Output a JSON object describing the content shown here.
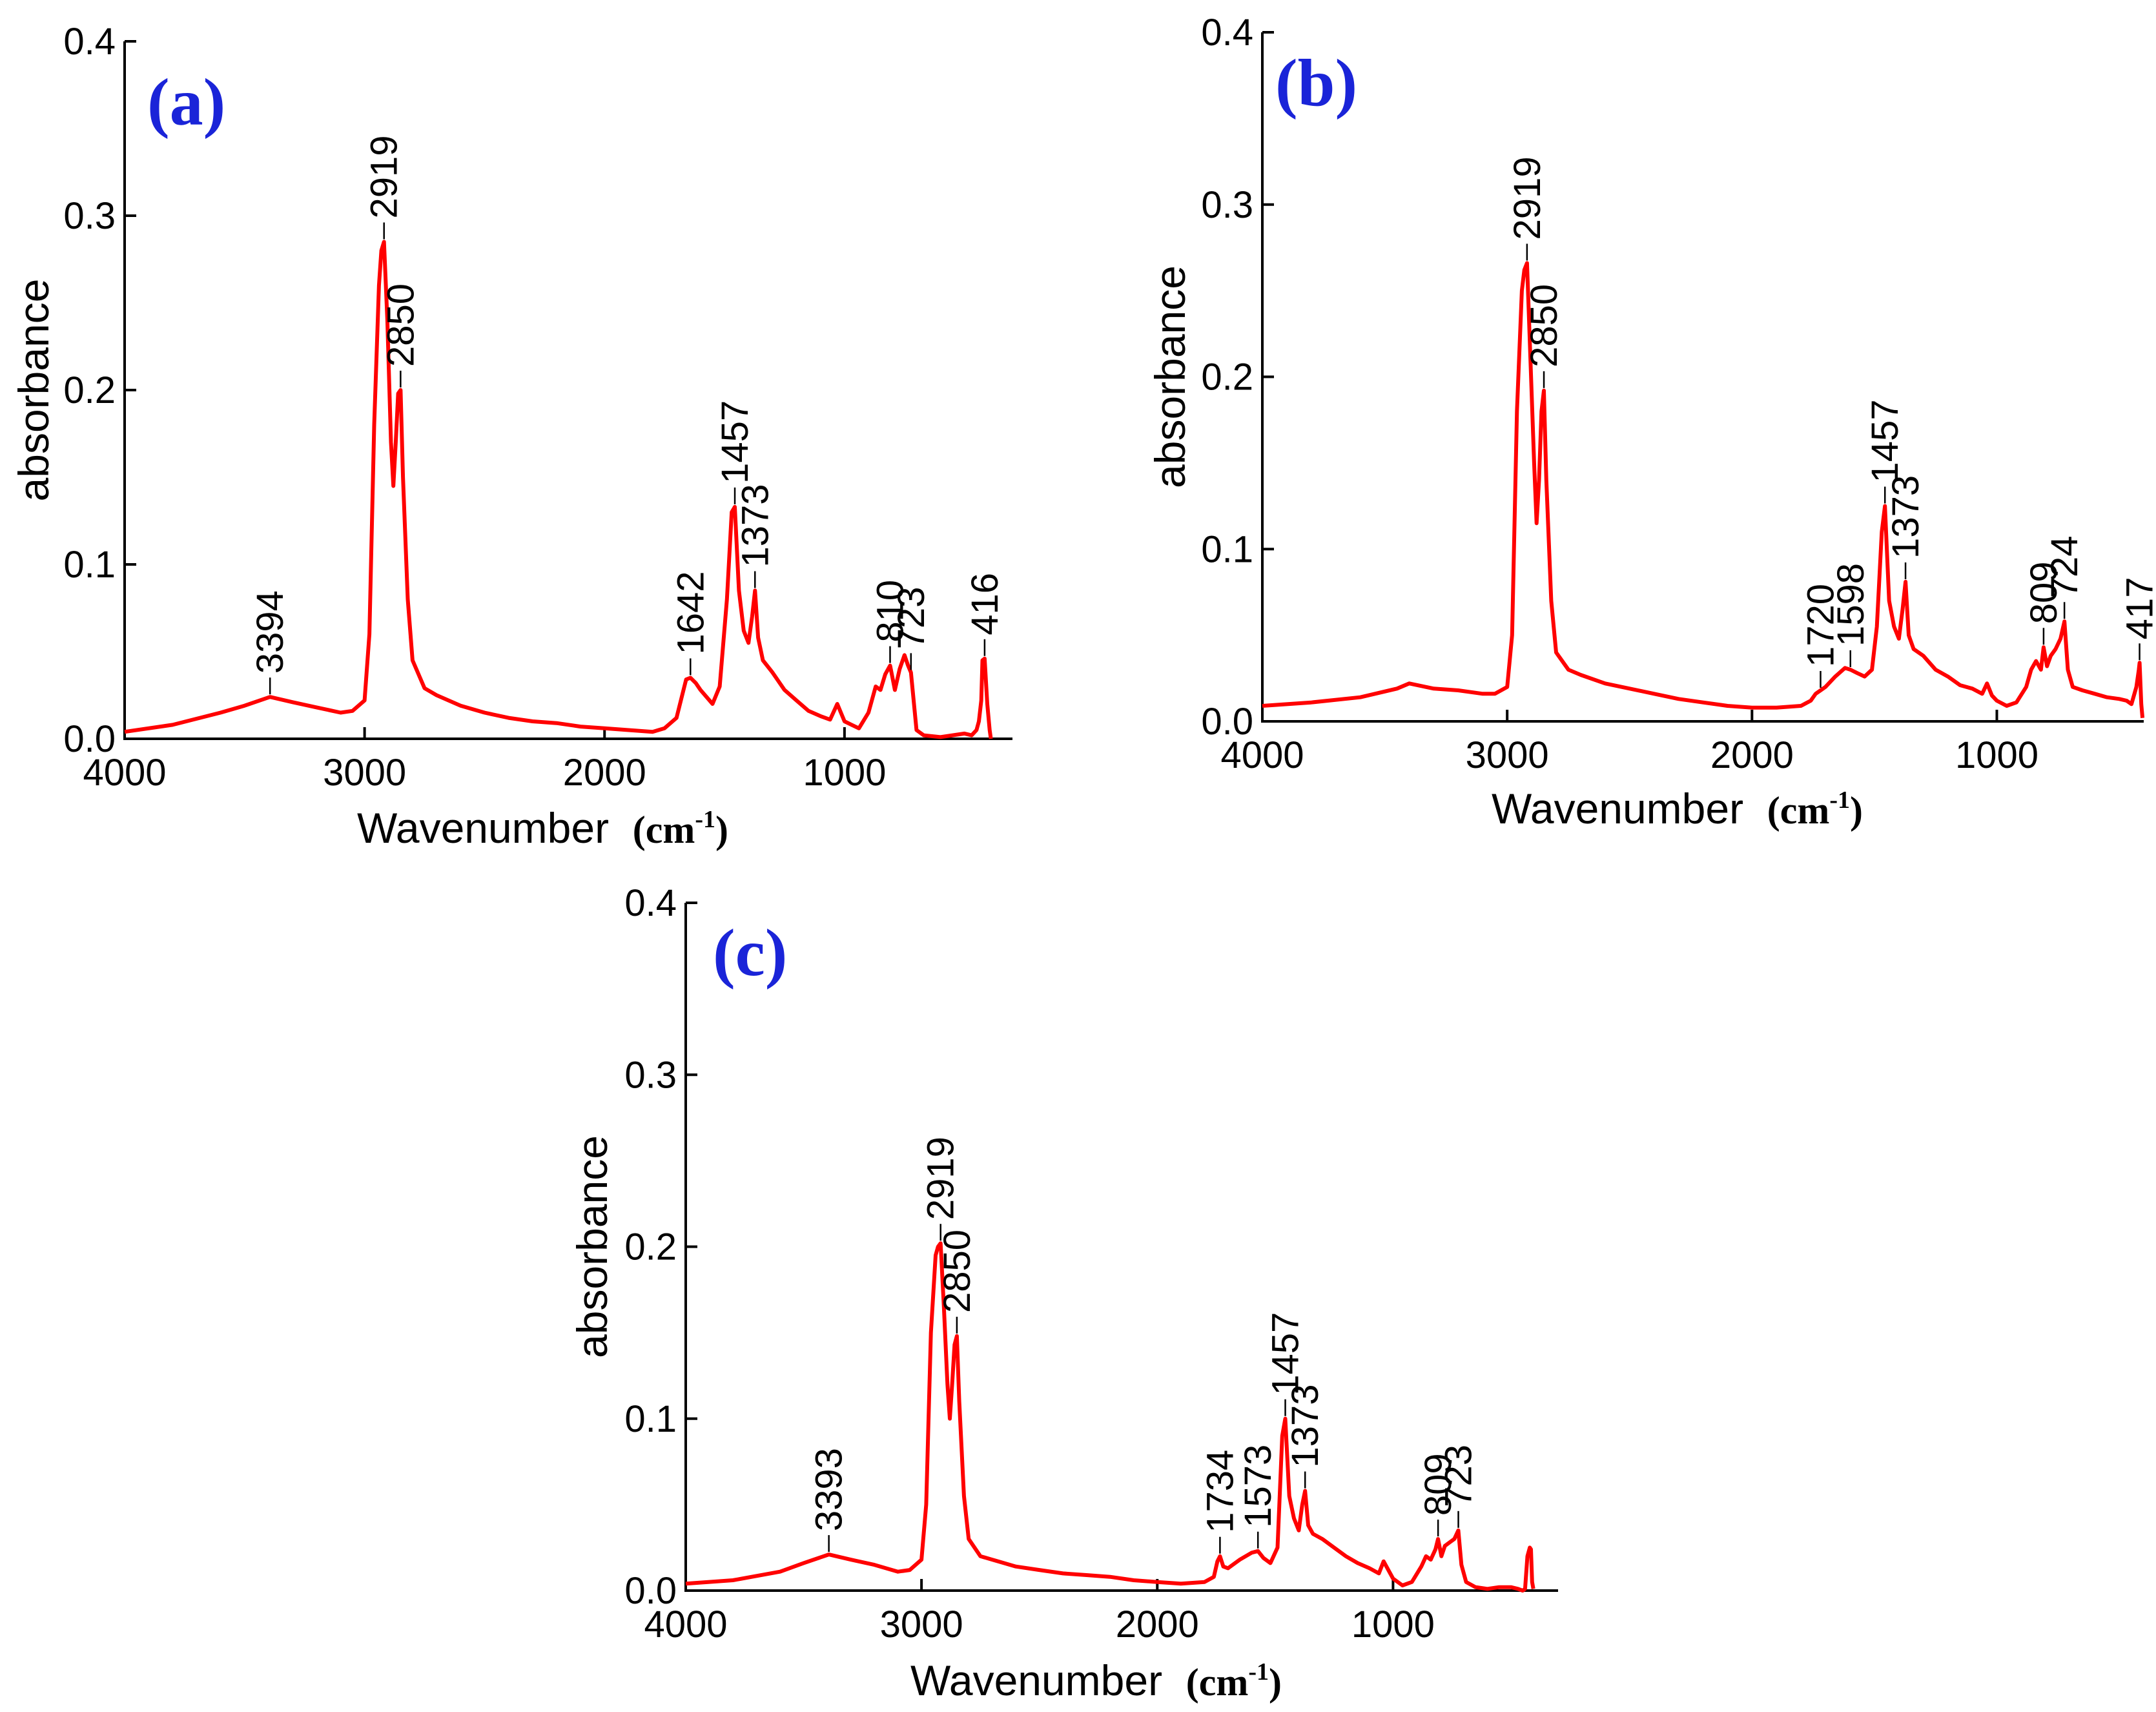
{
  "chart_data": [
    {
      "type": "line",
      "panel_label": "(a)",
      "xlabel": "Wavenumber",
      "xunit": "cm",
      "xunit_sup": "-1",
      "ylabel": "absorbance",
      "xlim": [
        4000,
        300
      ],
      "ylim": [
        0,
        0.4
      ],
      "x_ticks": [
        4000,
        3000,
        2000,
        1000
      ],
      "y_ticks": [
        0.0,
        0.1,
        0.2,
        0.3,
        0.4
      ],
      "y_tick_labels": [
        "0.0",
        "0.1",
        "0.2",
        "0.3",
        "0.4"
      ],
      "series": [
        {
          "name": "spectrum (a)",
          "color": "#ff0000",
          "x": [
            4000,
            3800,
            3600,
            3500,
            3394,
            3300,
            3200,
            3100,
            3050,
            3000,
            2980,
            2960,
            2940,
            2930,
            2919,
            2905,
            2890,
            2880,
            2870,
            2860,
            2850,
            2840,
            2820,
            2800,
            2750,
            2700,
            2600,
            2500,
            2400,
            2300,
            2200,
            2100,
            2000,
            1900,
            1800,
            1750,
            1700,
            1660,
            1642,
            1620,
            1600,
            1550,
            1520,
            1490,
            1470,
            1457,
            1440,
            1420,
            1400,
            1385,
            1373,
            1360,
            1340,
            1300,
            1250,
            1200,
            1150,
            1100,
            1060,
            1030,
            1000,
            970,
            940,
            900,
            870,
            850,
            830,
            810,
            790,
            770,
            750,
            735,
            723,
            700,
            670,
            600,
            550,
            500,
            470,
            450,
            440,
            430,
            425,
            416,
            405,
            395,
            390
          ],
          "y": [
            0.004,
            0.008,
            0.015,
            0.019,
            0.024,
            0.021,
            0.018,
            0.015,
            0.016,
            0.022,
            0.06,
            0.18,
            0.26,
            0.28,
            0.285,
            0.24,
            0.17,
            0.145,
            0.17,
            0.198,
            0.2,
            0.15,
            0.08,
            0.045,
            0.029,
            0.025,
            0.019,
            0.015,
            0.012,
            0.01,
            0.009,
            0.007,
            0.006,
            0.005,
            0.004,
            0.006,
            0.012,
            0.034,
            0.035,
            0.032,
            0.028,
            0.02,
            0.03,
            0.08,
            0.13,
            0.133,
            0.085,
            0.062,
            0.055,
            0.07,
            0.085,
            0.058,
            0.045,
            0.038,
            0.028,
            0.022,
            0.016,
            0.013,
            0.011,
            0.02,
            0.01,
            0.008,
            0.006,
            0.015,
            0.03,
            0.028,
            0.037,
            0.042,
            0.028,
            0.04,
            0.048,
            0.042,
            0.038,
            0.005,
            0.002,
            0.001,
            0.002,
            0.003,
            0.002,
            0.005,
            0.01,
            0.022,
            0.045,
            0.046,
            0.02,
            0.005,
            0.0
          ],
          "peaks": [
            {
              "label": "3394",
              "x": 3394,
              "y": 0.024
            },
            {
              "label": "2919",
              "x": 2919,
              "y": 0.285
            },
            {
              "label": "2850",
              "x": 2850,
              "y": 0.2
            },
            {
              "label": "1642",
              "x": 1642,
              "y": 0.035
            },
            {
              "label": "1457",
              "x": 1457,
              "y": 0.133
            },
            {
              "label": "1373",
              "x": 1373,
              "y": 0.085
            },
            {
              "label": "810",
              "x": 810,
              "y": 0.042
            },
            {
              "label": "723",
              "x": 723,
              "y": 0.038
            },
            {
              "label": "416",
              "x": 416,
              "y": 0.046
            }
          ]
        }
      ]
    },
    {
      "type": "line",
      "panel_label": "(b)",
      "xlabel": "Wavenumber",
      "xunit": "cm",
      "xunit_sup": "-1",
      "ylabel": "absorbance",
      "xlim": [
        4000,
        400
      ],
      "ylim": [
        0,
        0.4
      ],
      "x_ticks": [
        4000,
        3000,
        2000,
        1000
      ],
      "y_ticks": [
        0.0,
        0.1,
        0.2,
        0.3,
        0.4
      ],
      "y_tick_labels": [
        "0.0",
        "0.1",
        "0.2",
        "0.3",
        "0.4"
      ],
      "series": [
        {
          "name": "spectrum (b)",
          "color": "#ff0000",
          "x": [
            4000,
            3800,
            3600,
            3450,
            3400,
            3300,
            3200,
            3100,
            3050,
            3000,
            2980,
            2960,
            2940,
            2930,
            2919,
            2905,
            2890,
            2880,
            2870,
            2860,
            2850,
            2840,
            2820,
            2800,
            2750,
            2700,
            2600,
            2500,
            2400,
            2300,
            2200,
            2100,
            2000,
            1900,
            1800,
            1760,
            1740,
            1720,
            1700,
            1660,
            1620,
            1598,
            1570,
            1540,
            1510,
            1490,
            1470,
            1457,
            1440,
            1420,
            1400,
            1385,
            1373,
            1360,
            1340,
            1300,
            1250,
            1200,
            1150,
            1100,
            1060,
            1040,
            1020,
            1000,
            960,
            920,
            880,
            860,
            840,
            820,
            809,
            795,
            780,
            760,
            740,
            724,
            710,
            690,
            650,
            600,
            550,
            500,
            470,
            450,
            440,
            430,
            420,
            417,
            410,
            405
          ],
          "y": [
            0.009,
            0.011,
            0.014,
            0.019,
            0.022,
            0.019,
            0.018,
            0.016,
            0.016,
            0.02,
            0.05,
            0.18,
            0.25,
            0.262,
            0.266,
            0.21,
            0.15,
            0.115,
            0.14,
            0.18,
            0.192,
            0.14,
            0.07,
            0.04,
            0.03,
            0.027,
            0.022,
            0.019,
            0.016,
            0.013,
            0.011,
            0.009,
            0.008,
            0.008,
            0.009,
            0.012,
            0.016,
            0.018,
            0.02,
            0.026,
            0.031,
            0.03,
            0.028,
            0.026,
            0.03,
            0.055,
            0.11,
            0.125,
            0.07,
            0.055,
            0.048,
            0.065,
            0.081,
            0.05,
            0.042,
            0.038,
            0.03,
            0.026,
            0.021,
            0.019,
            0.016,
            0.022,
            0.015,
            0.012,
            0.009,
            0.011,
            0.02,
            0.03,
            0.035,
            0.03,
            0.043,
            0.032,
            0.038,
            0.042,
            0.048,
            0.058,
            0.03,
            0.02,
            0.018,
            0.016,
            0.014,
            0.013,
            0.012,
            0.01,
            0.015,
            0.02,
            0.03,
            0.034,
            0.01,
            0.002
          ],
          "peaks": [
            {
              "label": "2919",
              "x": 2919,
              "y": 0.266
            },
            {
              "label": "2850",
              "x": 2850,
              "y": 0.192
            },
            {
              "label": "1720",
              "x": 1720,
              "y": 0.018
            },
            {
              "label": "1598",
              "x": 1598,
              "y": 0.03
            },
            {
              "label": "1457",
              "x": 1457,
              "y": 0.125
            },
            {
              "label": "1373",
              "x": 1373,
              "y": 0.081
            },
            {
              "label": "809",
              "x": 809,
              "y": 0.043
            },
            {
              "label": "724",
              "x": 724,
              "y": 0.058
            },
            {
              "label": "417",
              "x": 417,
              "y": 0.034
            }
          ]
        }
      ]
    },
    {
      "type": "line",
      "panel_label": "(c)",
      "xlabel": "Wavenumber",
      "xunit": "cm",
      "xunit_sup": "-1",
      "ylabel": "absorbance",
      "xlim": [
        4000,
        300
      ],
      "ylim": [
        0,
        0.4
      ],
      "x_ticks": [
        4000,
        3000,
        2000,
        1000
      ],
      "y_ticks": [
        0.0,
        0.1,
        0.2,
        0.3,
        0.4
      ],
      "y_tick_labels": [
        "0.0",
        "0.1",
        "0.2",
        "0.3",
        "0.4"
      ],
      "series": [
        {
          "name": "spectrum (c)",
          "color": "#ff0000",
          "x": [
            4000,
            3800,
            3600,
            3500,
            3393,
            3300,
            3200,
            3100,
            3050,
            3000,
            2980,
            2960,
            2940,
            2930,
            2919,
            2905,
            2890,
            2880,
            2870,
            2860,
            2850,
            2840,
            2820,
            2800,
            2750,
            2700,
            2600,
            2500,
            2400,
            2300,
            2200,
            2100,
            2000,
            1900,
            1800,
            1760,
            1745,
            1734,
            1720,
            1700,
            1650,
            1600,
            1573,
            1550,
            1520,
            1490,
            1470,
            1457,
            1440,
            1420,
            1400,
            1385,
            1373,
            1360,
            1340,
            1300,
            1250,
            1200,
            1150,
            1100,
            1060,
            1040,
            1020,
            1000,
            960,
            920,
            880,
            860,
            840,
            820,
            809,
            795,
            780,
            760,
            740,
            723,
            710,
            690,
            650,
            600,
            550,
            500,
            470,
            450,
            440,
            430,
            420,
            415,
            410,
            405
          ],
          "y": [
            0.004,
            0.006,
            0.011,
            0.016,
            0.021,
            0.018,
            0.015,
            0.011,
            0.012,
            0.018,
            0.05,
            0.15,
            0.195,
            0.2,
            0.202,
            0.165,
            0.12,
            0.1,
            0.12,
            0.143,
            0.148,
            0.11,
            0.055,
            0.03,
            0.02,
            0.018,
            0.014,
            0.012,
            0.01,
            0.009,
            0.008,
            0.006,
            0.005,
            0.004,
            0.005,
            0.008,
            0.017,
            0.02,
            0.014,
            0.013,
            0.018,
            0.022,
            0.023,
            0.019,
            0.016,
            0.025,
            0.09,
            0.1,
            0.055,
            0.042,
            0.035,
            0.05,
            0.058,
            0.038,
            0.033,
            0.03,
            0.025,
            0.02,
            0.016,
            0.013,
            0.01,
            0.017,
            0.012,
            0.007,
            0.003,
            0.005,
            0.014,
            0.02,
            0.018,
            0.024,
            0.03,
            0.02,
            0.026,
            0.028,
            0.03,
            0.035,
            0.015,
            0.005,
            0.002,
            0.001,
            0.002,
            0.002,
            0.001,
            0.0,
            0.001,
            0.02,
            0.025,
            0.024,
            0.005,
            0.001
          ],
          "peaks": [
            {
              "label": "3393",
              "x": 3393,
              "y": 0.021
            },
            {
              "label": "2919",
              "x": 2919,
              "y": 0.202
            },
            {
              "label": "2850",
              "x": 2850,
              "y": 0.148
            },
            {
              "label": "1734",
              "x": 1734,
              "y": 0.02
            },
            {
              "label": "1573",
              "x": 1573,
              "y": 0.023
            },
            {
              "label": "1457",
              "x": 1457,
              "y": 0.1
            },
            {
              "label": "1373",
              "x": 1373,
              "y": 0.058
            },
            {
              "label": "809",
              "x": 809,
              "y": 0.03
            },
            {
              "label": "723",
              "x": 723,
              "y": 0.035
            }
          ]
        }
      ]
    }
  ]
}
